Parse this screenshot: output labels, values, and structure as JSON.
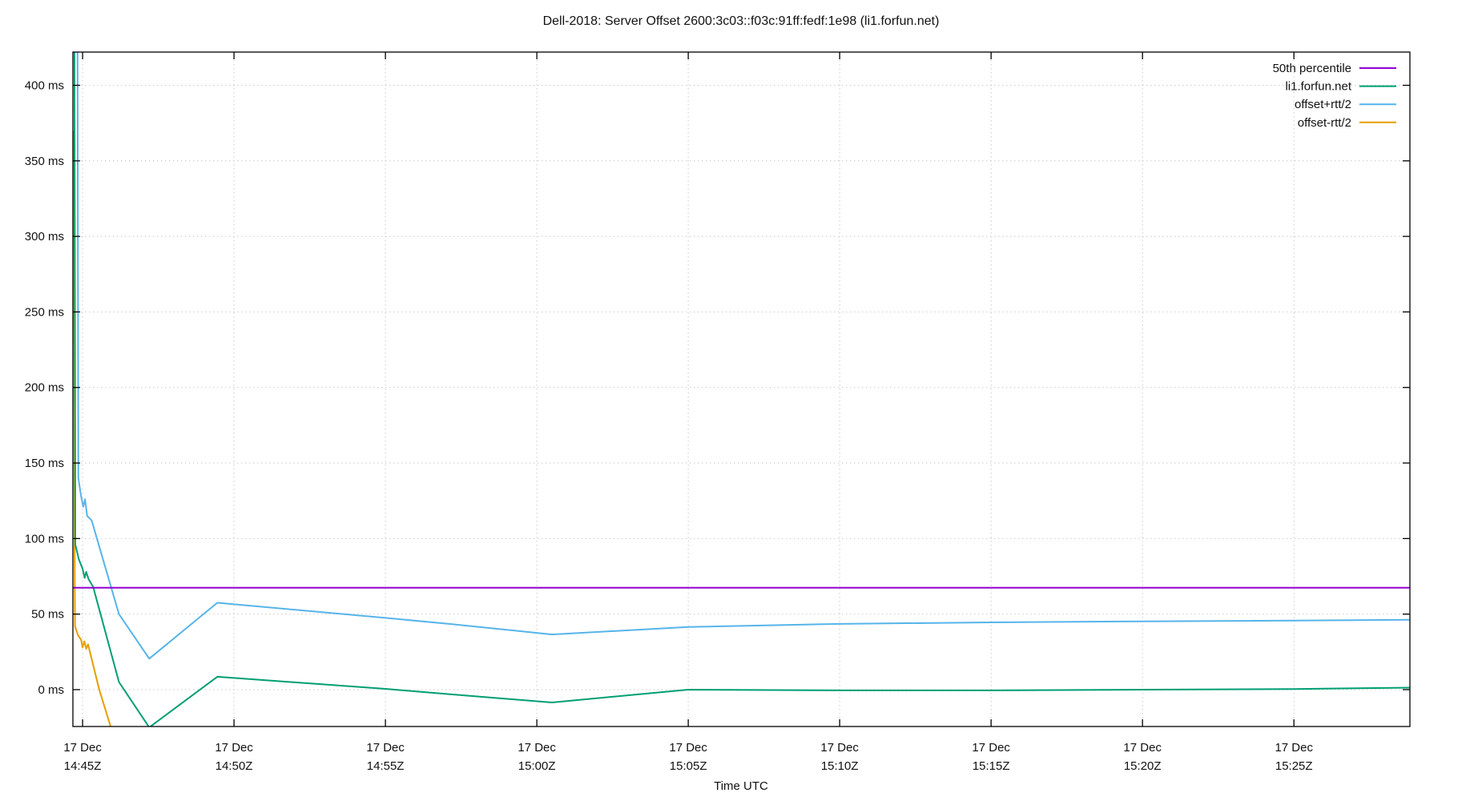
{
  "chart_data": {
    "type": "line",
    "title": "Dell-2018: Server Offset 2600:3c03::f03c:91ff:fedf:1e98 (li1.forfun.net)",
    "xlabel": "Time UTC",
    "y_unit": "ms",
    "x_unit": "minutes since 17 Dec 14:45Z",
    "xlim": [
      -0.32,
      43.83
    ],
    "ylim": [
      -24.4,
      422
    ],
    "grid": true,
    "legend_position": "top-right-inside",
    "y_ticks": [
      {
        "value": 0,
        "label": "0 ms"
      },
      {
        "value": 50,
        "label": "50 ms"
      },
      {
        "value": 100,
        "label": "100 ms"
      },
      {
        "value": 150,
        "label": "150 ms"
      },
      {
        "value": 200,
        "label": "200 ms"
      },
      {
        "value": 250,
        "label": "250 ms"
      },
      {
        "value": 300,
        "label": "300 ms"
      },
      {
        "value": 350,
        "label": "350 ms"
      },
      {
        "value": 400,
        "label": "400 ms"
      }
    ],
    "x_ticks": [
      {
        "t": 0,
        "line1": "17 Dec",
        "line2": "14:45Z"
      },
      {
        "t": 5,
        "line1": "17 Dec",
        "line2": "14:50Z"
      },
      {
        "t": 10,
        "line1": "17 Dec",
        "line2": "14:55Z"
      },
      {
        "t": 15,
        "line1": "17 Dec",
        "line2": "15:00Z"
      },
      {
        "t": 20,
        "line1": "17 Dec",
        "line2": "15:05Z"
      },
      {
        "t": 25,
        "line1": "17 Dec",
        "line2": "15:10Z"
      },
      {
        "t": 30,
        "line1": "17 Dec",
        "line2": "15:15Z"
      },
      {
        "t": 35,
        "line1": "17 Dec",
        "line2": "15:20Z"
      },
      {
        "t": 40,
        "line1": "17 Dec",
        "line2": "15:25Z"
      }
    ],
    "series": [
      {
        "name": "50th percentile",
        "color": "#9400d3",
        "points": [
          [
            -0.32,
            67.5
          ],
          [
            43.83,
            67.5
          ]
        ]
      },
      {
        "name": "li1.forfun.net",
        "color": "#009e73",
        "points": [
          [
            -0.27,
            430
          ],
          [
            -0.24,
            96
          ],
          [
            -0.12,
            86
          ],
          [
            0.0,
            80
          ],
          [
            0.07,
            74
          ],
          [
            0.12,
            78
          ],
          [
            0.2,
            73
          ],
          [
            0.35,
            68
          ],
          [
            1.2,
            5
          ],
          [
            2.2,
            -25
          ],
          [
            4.45,
            8.5
          ],
          [
            10.0,
            0.5
          ],
          [
            12.1,
            -3
          ],
          [
            15.5,
            -8.5
          ],
          [
            20.0,
            0
          ],
          [
            25.0,
            -0.5
          ],
          [
            30.0,
            -0.5
          ],
          [
            35.0,
            0
          ],
          [
            40.0,
            0.4
          ],
          [
            43.83,
            1.3
          ]
        ]
      },
      {
        "name": "offset+rtt/2",
        "color": "#56b4e9",
        "points": [
          [
            -0.17,
            430
          ],
          [
            -0.14,
            140
          ],
          [
            -0.05,
            128
          ],
          [
            0.02,
            121
          ],
          [
            0.08,
            126
          ],
          [
            0.15,
            115
          ],
          [
            0.3,
            112
          ],
          [
            1.2,
            50
          ],
          [
            2.2,
            20.5
          ],
          [
            4.45,
            57.5
          ],
          [
            10.0,
            47.5
          ],
          [
            12.1,
            43.5
          ],
          [
            15.5,
            36.5
          ],
          [
            20.0,
            41.5
          ],
          [
            25.0,
            43.5
          ],
          [
            30.0,
            44.5
          ],
          [
            35.0,
            45.2
          ],
          [
            40.0,
            45.7
          ],
          [
            43.83,
            46.2
          ]
        ]
      },
      {
        "name": "offset-rtt/2",
        "color": "#e69f00",
        "points": [
          [
            -0.29,
            370
          ],
          [
            -0.27,
            120
          ],
          [
            -0.25,
            42
          ],
          [
            -0.15,
            36
          ],
          [
            -0.05,
            33
          ],
          [
            0.0,
            28
          ],
          [
            0.06,
            32
          ],
          [
            0.12,
            27
          ],
          [
            0.18,
            30
          ],
          [
            0.55,
            0
          ],
          [
            0.95,
            -26
          ]
        ]
      }
    ],
    "style": {
      "grid_color": "#c9c9c9",
      "border_color": "#000000",
      "text_color": "#111111",
      "background": "#ffffff"
    }
  }
}
